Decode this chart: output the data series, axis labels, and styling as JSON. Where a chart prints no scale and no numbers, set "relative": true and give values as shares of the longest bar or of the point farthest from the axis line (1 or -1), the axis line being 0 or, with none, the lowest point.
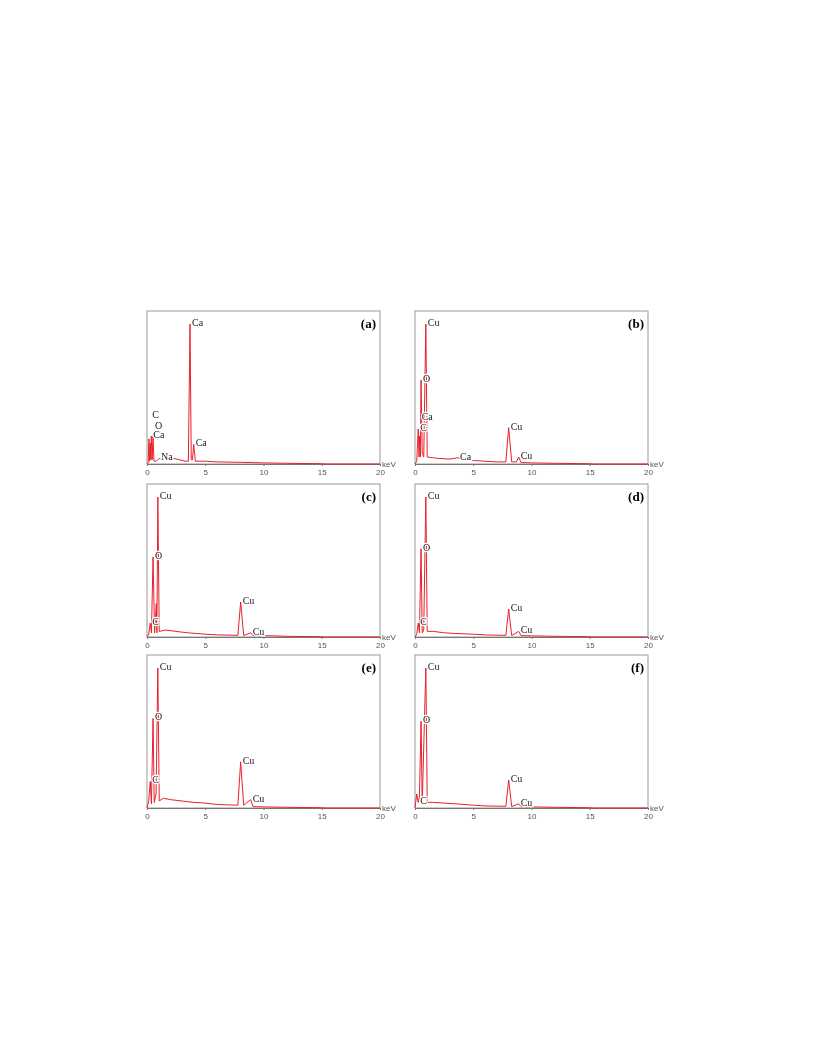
{
  "chart_data": [
    {
      "type": "line",
      "title": "(a)",
      "xlabel": "keV",
      "relative": true,
      "xlim": [
        0,
        20
      ],
      "xticks": [
        0,
        5,
        10,
        15,
        20
      ],
      "color": "#e8202a",
      "x": [
        0,
        0.1,
        0.17,
        0.22,
        0.28,
        0.33,
        0.37,
        0.44,
        0.52,
        0.6,
        0.8,
        1.04,
        1.3,
        1.8,
        2.3,
        2.8,
        3.3,
        3.55,
        3.69,
        3.8,
        3.9,
        4.01,
        4.15,
        5,
        6,
        8,
        10,
        12,
        14,
        15,
        15.2,
        20
      ],
      "values": [
        0,
        0.01,
        0.18,
        0.02,
        0.15,
        0.03,
        0.2,
        0.03,
        0.2,
        0.02,
        0.02,
        0.04,
        0.03,
        0.05,
        0.04,
        0.03,
        0.02,
        0.02,
        1,
        0.03,
        0.03,
        0.14,
        0.02,
        0.02,
        0.015,
        0.012,
        0.008,
        0.005,
        0.003,
        0.002,
        0,
        0
      ],
      "annotations": [
        {
          "text": "Ca",
          "x": 0.37,
          "y": 0.2
        },
        {
          "text": "O",
          "x": 0.52,
          "y": 0.2
        },
        {
          "text": "C",
          "x": 0.28,
          "y": 0.15
        },
        {
          "text": "Na",
          "x": 1.04,
          "y": 0.04
        },
        {
          "text": "Ca",
          "x": 3.69,
          "y": 1
        },
        {
          "text": "Ca",
          "x": 4.01,
          "y": 0.14
        }
      ]
    },
    {
      "type": "line",
      "title": "(b)",
      "xlabel": "keV",
      "relative": true,
      "xlim": [
        0,
        20
      ],
      "xticks": [
        0,
        5,
        10,
        15,
        20
      ],
      "color": "#e8202a",
      "x": [
        0,
        0.15,
        0.28,
        0.35,
        0.4,
        0.46,
        0.52,
        0.62,
        0.75,
        0.93,
        1.05,
        1.5,
        2,
        3,
        3.69,
        4,
        5,
        6,
        7,
        7.8,
        8.04,
        8.3,
        8.7,
        8.9,
        9.1,
        10,
        12,
        15,
        15.2,
        20
      ],
      "values": [
        0,
        0.02,
        0.25,
        0.05,
        0.2,
        0.05,
        0.6,
        0.08,
        0.05,
        1,
        0.05,
        0.045,
        0.04,
        0.035,
        0.045,
        0.03,
        0.025,
        0.02,
        0.015,
        0.015,
        0.26,
        0.015,
        0.015,
        0.05,
        0.01,
        0.008,
        0.005,
        0.002,
        0,
        0
      ],
      "annotations": [
        {
          "text": "Cu",
          "x": 0.93,
          "y": 1
        },
        {
          "text": "O",
          "x": 0.52,
          "y": 0.6
        },
        {
          "text": "C",
          "x": 0.28,
          "y": 0.25
        },
        {
          "text": "Ca",
          "x": 0.4,
          "y": 0.2
        },
        {
          "text": "Ca",
          "x": 3.69,
          "y": 0.045
        },
        {
          "text": "Cu",
          "x": 8.04,
          "y": 0.26
        },
        {
          "text": "Cu",
          "x": 8.9,
          "y": 0.05
        }
      ]
    },
    {
      "type": "line",
      "title": "(c)",
      "xlabel": "keV",
      "relative": true,
      "xlim": [
        0,
        20
      ],
      "xticks": [
        0,
        5,
        10,
        15,
        20
      ],
      "color": "#e8202a",
      "x": [
        0,
        0.15,
        0.28,
        0.38,
        0.52,
        0.65,
        0.8,
        0.85,
        0.93,
        1.05,
        1.6,
        2.5,
        3.5,
        5,
        6,
        7.8,
        8.04,
        8.3,
        8.9,
        9.1,
        10,
        12,
        15,
        15.2,
        20
      ],
      "values": [
        0,
        0.02,
        0.1,
        0.03,
        0.57,
        0.03,
        0.24,
        0.03,
        1,
        0.04,
        0.05,
        0.04,
        0.03,
        0.02,
        0.015,
        0.012,
        0.25,
        0.01,
        0.03,
        0.01,
        0.01,
        0.005,
        0.002,
        0,
        0
      ],
      "annotations": [
        {
          "text": "Cu",
          "x": 0.93,
          "y": 1
        },
        {
          "text": "O",
          "x": 0.52,
          "y": 0.57
        },
        {
          "text": "C",
          "x": 0.28,
          "y": 0.1
        },
        {
          "text": "Cu",
          "x": 8.04,
          "y": 0.25
        },
        {
          "text": "Cu",
          "x": 8.9,
          "y": 0.03
        }
      ]
    },
    {
      "type": "line",
      "title": "(d)",
      "xlabel": "keV",
      "relative": true,
      "xlim": [
        0,
        20
      ],
      "xticks": [
        0,
        5,
        10,
        15,
        20
      ],
      "color": "#e8202a",
      "x": [
        0,
        0.15,
        0.28,
        0.38,
        0.52,
        0.62,
        0.75,
        0.93,
        1.05,
        1.6,
        2.5,
        3.5,
        5,
        6,
        7.8,
        8.04,
        8.3,
        8.9,
        9.1,
        10,
        12,
        15,
        15.2,
        20
      ],
      "values": [
        0,
        0.02,
        0.1,
        0.03,
        0.63,
        0.03,
        0.05,
        1,
        0.04,
        0.04,
        0.03,
        0.025,
        0.02,
        0.015,
        0.012,
        0.2,
        0.01,
        0.04,
        0.01,
        0.008,
        0.005,
        0.002,
        0,
        0
      ],
      "annotations": [
        {
          "text": "Cu",
          "x": 0.93,
          "y": 1
        },
        {
          "text": "O",
          "x": 0.52,
          "y": 0.63
        },
        {
          "text": "C",
          "x": 0.28,
          "y": 0.1
        },
        {
          "text": "Cu",
          "x": 8.04,
          "y": 0.2
        },
        {
          "text": "Cu",
          "x": 8.9,
          "y": 0.04
        }
      ]
    },
    {
      "type": "line",
      "title": "(e)",
      "xlabel": "keV",
      "relative": true,
      "xlim": [
        0,
        20
      ],
      "xticks": [
        0,
        5,
        10,
        15,
        20
      ],
      "color": "#e8202a",
      "x": [
        0,
        0.15,
        0.28,
        0.38,
        0.52,
        0.62,
        0.78,
        0.93,
        1.05,
        1.4,
        2,
        3,
        4,
        5,
        6,
        7.8,
        8.04,
        8.3,
        8.9,
        9.1,
        10,
        12,
        15,
        15.2,
        20
      ],
      "values": [
        0,
        0.05,
        0.19,
        0.03,
        0.64,
        0.04,
        0.1,
        1,
        0.05,
        0.07,
        0.06,
        0.05,
        0.04,
        0.035,
        0.025,
        0.02,
        0.33,
        0.02,
        0.06,
        0.01,
        0.008,
        0.005,
        0.002,
        0,
        0
      ],
      "annotations": [
        {
          "text": "Cu",
          "x": 0.93,
          "y": 1
        },
        {
          "text": "O",
          "x": 0.52,
          "y": 0.64
        },
        {
          "text": "C",
          "x": 0.28,
          "y": 0.19
        },
        {
          "text": "Cu",
          "x": 8.04,
          "y": 0.33
        },
        {
          "text": "Cu",
          "x": 8.9,
          "y": 0.06
        }
      ]
    },
    {
      "type": "line",
      "title": "(f)",
      "xlabel": "keV",
      "relative": true,
      "xlim": [
        0,
        20
      ],
      "xticks": [
        0,
        5,
        10,
        15,
        20
      ],
      "color": "#e8202a",
      "x": [
        0,
        0.15,
        0.28,
        0.38,
        0.52,
        0.62,
        0.93,
        1.05,
        1.5,
        2.5,
        3.5,
        5,
        6,
        7.8,
        8.04,
        8.3,
        8.9,
        9.1,
        10,
        12,
        15,
        15.2,
        20
      ],
      "values": [
        0,
        0.1,
        0.04,
        0.08,
        0.62,
        0.03,
        1,
        0.04,
        0.04,
        0.035,
        0.03,
        0.02,
        0.015,
        0.012,
        0.2,
        0.01,
        0.03,
        0.01,
        0.008,
        0.005,
        0.002,
        0,
        0
      ],
      "annotations": [
        {
          "text": "Cu",
          "x": 0.93,
          "y": 1
        },
        {
          "text": "O",
          "x": 0.52,
          "y": 0.62
        },
        {
          "text": "C",
          "x": 0.28,
          "y": 0.04
        },
        {
          "text": "Cu",
          "x": 8.04,
          "y": 0.2
        },
        {
          "text": "Cu",
          "x": 8.9,
          "y": 0.03
        }
      ]
    }
  ]
}
